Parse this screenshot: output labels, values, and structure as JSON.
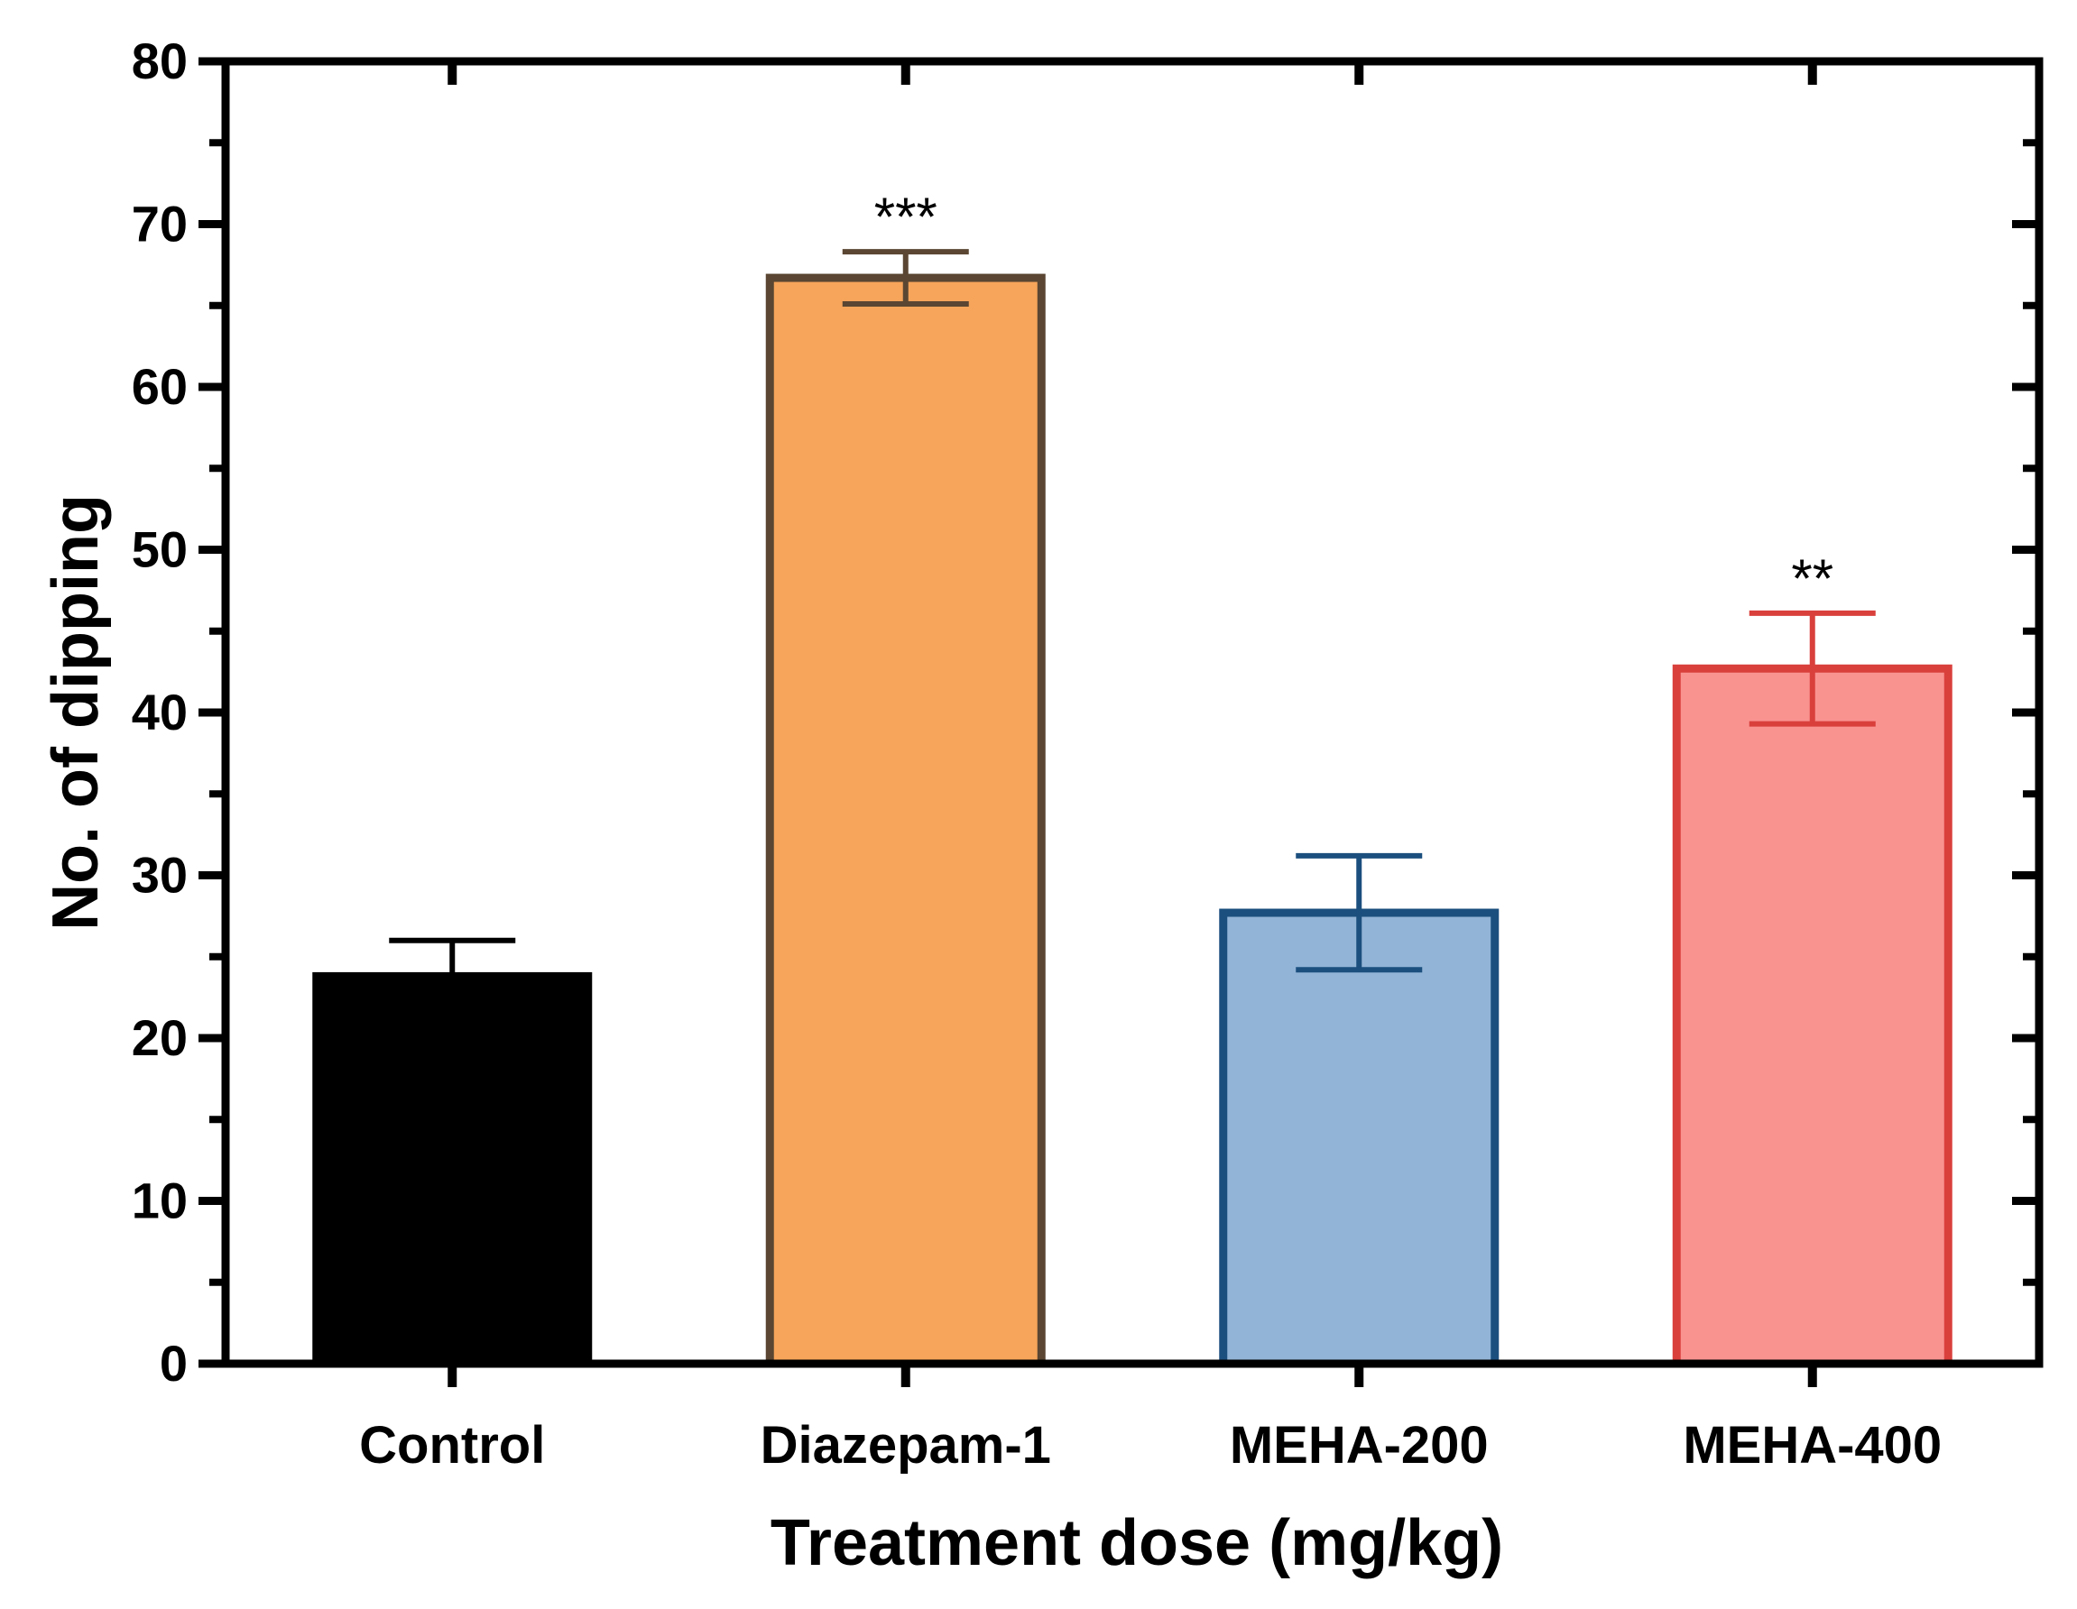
{
  "chart_data": {
    "type": "bar",
    "title": "",
    "xlabel": "Treatment dose (mg/kg)",
    "ylabel": "No. of dipping",
    "ylim": [
      0,
      80
    ],
    "yticks": [
      0,
      10,
      20,
      30,
      40,
      50,
      60,
      70,
      80
    ],
    "categories": [
      "Control",
      "Diazepam-1",
      "MEHA-200",
      "MEHA-400"
    ],
    "values": [
      23.8,
      66.7,
      27.7,
      42.7
    ],
    "errors": [
      2.2,
      1.6,
      3.5,
      3.4
    ],
    "significance": [
      "",
      "***",
      "",
      "**"
    ],
    "fill_colors": [
      "#000000",
      "#F7A55A",
      "#92B4D6",
      "#F99390"
    ],
    "edge_colors": [
      "#000000",
      "#5A4632",
      "#1B4F7E",
      "#D9403C"
    ],
    "grid": false,
    "legend": "none"
  }
}
